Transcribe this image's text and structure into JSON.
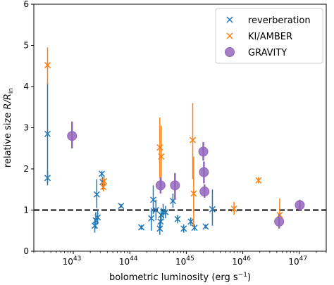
{
  "chart_data": {
    "type": "scatter",
    "xlabel": "bolometric luminosity (erg s",
    "xlabel_sup": "−1",
    "xlabel_end": ")",
    "ylabel_prefix": "relative size ",
    "ylabel_var": "R/R",
    "ylabel_sub": "in",
    "x_scale": "log",
    "xlim": [
      2e+42,
      3e+47
    ],
    "ylim": [
      0,
      6
    ],
    "x_ticks": [
      {
        "exp": 43,
        "base": "10",
        "sup": "43"
      },
      {
        "exp": 44,
        "base": "10",
        "sup": "44"
      },
      {
        "exp": 45,
        "base": "10",
        "sup": "45"
      },
      {
        "exp": 46,
        "base": "10",
        "sup": "46"
      },
      {
        "exp": 47,
        "base": "10",
        "sup": "47"
      }
    ],
    "y_ticks": [
      "0",
      "1",
      "2",
      "3",
      "4",
      "5",
      "6"
    ],
    "reference_line": {
      "y": 1,
      "style": "dashed"
    },
    "legend": {
      "position": "top-right"
    },
    "series": [
      {
        "name": "reverberation",
        "color": "#1f77b4",
        "marker": "x",
        "points": [
          {
            "x": 3.5e+42,
            "y": 2.85,
            "ylo": 1.65,
            "yhi": 4.1
          },
          {
            "x": 3.5e+42,
            "y": 1.78,
            "ylo": 1.6,
            "yhi": 1.95
          },
          {
            "x": 2.4e+43,
            "y": 0.62,
            "ylo": 0.45,
            "yhi": 0.8
          },
          {
            "x": 2.5e+43,
            "y": 0.75,
            "ylo": 0.55,
            "yhi": 0.95
          },
          {
            "x": 2.7e+43,
            "y": 0.82,
            "ylo": 0.65,
            "yhi": 1.0
          },
          {
            "x": 2.6e+43,
            "y": 1.38,
            "ylo": 1.05,
            "yhi": 1.75
          },
          {
            "x": 3.2e+43,
            "y": 1.88,
            "ylo": 1.8,
            "yhi": 1.95
          },
          {
            "x": 3.3e+43,
            "y": 1.68,
            "ylo": 1.5,
            "yhi": 1.8
          },
          {
            "x": 7e+43,
            "y": 1.1,
            "ylo": 1.05,
            "yhi": 1.15
          },
          {
            "x": 1.6e+44,
            "y": 0.58,
            "ylo": 0.52,
            "yhi": 0.64
          },
          {
            "x": 2.4e+44,
            "y": 0.8,
            "ylo": 0.5,
            "yhi": 1.05
          },
          {
            "x": 2.6e+44,
            "y": 1.25,
            "ylo": 0.9,
            "yhi": 1.6
          },
          {
            "x": 2.9e+44,
            "y": 1.0,
            "ylo": 0.75,
            "yhi": 1.25
          },
          {
            "x": 3.4e+44,
            "y": 0.55,
            "ylo": 0.4,
            "yhi": 0.7
          },
          {
            "x": 3.5e+44,
            "y": 0.72,
            "ylo": 0.55,
            "yhi": 0.9
          },
          {
            "x": 3.6e+44,
            "y": 0.88,
            "ylo": 0.7,
            "yhi": 1.05
          },
          {
            "x": 3.9e+44,
            "y": 0.95,
            "ylo": 0.75,
            "yhi": 1.15
          },
          {
            "x": 4.3e+44,
            "y": 0.95,
            "ylo": 0.8,
            "yhi": 1.1
          },
          {
            "x": 5.8e+44,
            "y": 1.22,
            "ylo": 1.05,
            "yhi": 1.4
          },
          {
            "x": 7e+44,
            "y": 0.78,
            "ylo": 0.68,
            "yhi": 0.88
          },
          {
            "x": 9e+44,
            "y": 0.55,
            "ylo": 0.45,
            "yhi": 0.65
          },
          {
            "x": 1.2e+45,
            "y": 0.72,
            "ylo": 0.62,
            "yhi": 0.82
          },
          {
            "x": 1.4e+45,
            "y": 0.57,
            "ylo": 0.5,
            "yhi": 0.65
          },
          {
            "x": 2.2e+45,
            "y": 0.6,
            "ylo": 0.55,
            "yhi": 0.65
          },
          {
            "x": 2.9e+45,
            "y": 1.02,
            "ylo": 0.62,
            "yhi": 1.5
          }
        ]
      },
      {
        "name": "KI/AMBER",
        "color": "#ff7f0e",
        "marker": "x",
        "points": [
          {
            "x": 3.5e+42,
            "y": 4.52,
            "ylo": 4.05,
            "yhi": 4.95
          },
          {
            "x": 3.4e+43,
            "y": 1.56,
            "ylo": 1.45,
            "yhi": 1.68
          },
          {
            "x": 3.5e+43,
            "y": 1.7,
            "ylo": 1.58,
            "yhi": 1.82
          },
          {
            "x": 3.4e+44,
            "y": 2.52,
            "ylo": 1.78,
            "yhi": 3.25
          },
          {
            "x": 3.6e+44,
            "y": 2.3,
            "ylo": 1.55,
            "yhi": 3.05
          },
          {
            "x": 1.3e+45,
            "y": 2.7,
            "ylo": 1.75,
            "yhi": 3.6
          },
          {
            "x": 1.35e+45,
            "y": 1.4,
            "ylo": 0.6,
            "yhi": 2.3
          },
          {
            "x": 7e+45,
            "y": 1.03,
            "ylo": 0.88,
            "yhi": 1.2
          },
          {
            "x": 1.9e+46,
            "y": 1.72,
            "ylo": 1.65,
            "yhi": 1.8
          },
          {
            "x": 4.5e+46,
            "y": 0.88,
            "ylo": 0.6,
            "yhi": 1.28
          }
        ]
      },
      {
        "name": "GRAVITY",
        "color": "#9467bd",
        "marker": "o",
        "points": [
          {
            "x": 9.5e+42,
            "y": 2.8,
            "ylo": 2.5,
            "yhi": 3.15
          },
          {
            "x": 3.5e+44,
            "y": 1.6,
            "ylo": 1.4,
            "yhi": 1.8
          },
          {
            "x": 6.3e+44,
            "y": 1.6,
            "ylo": 1.25,
            "yhi": 1.9
          },
          {
            "x": 2e+45,
            "y": 2.42,
            "ylo": 2.2,
            "yhi": 2.65
          },
          {
            "x": 2.05e+45,
            "y": 1.92,
            "ylo": 1.65,
            "yhi": 2.18
          },
          {
            "x": 2.1e+45,
            "y": 1.45,
            "ylo": 1.3,
            "yhi": 1.62
          },
          {
            "x": 4.4e+46,
            "y": 0.72,
            "ylo": 0.55,
            "yhi": 0.9
          },
          {
            "x": 1.02e+47,
            "y": 1.12,
            "ylo": 1.0,
            "yhi": 1.25
          }
        ]
      }
    ]
  }
}
